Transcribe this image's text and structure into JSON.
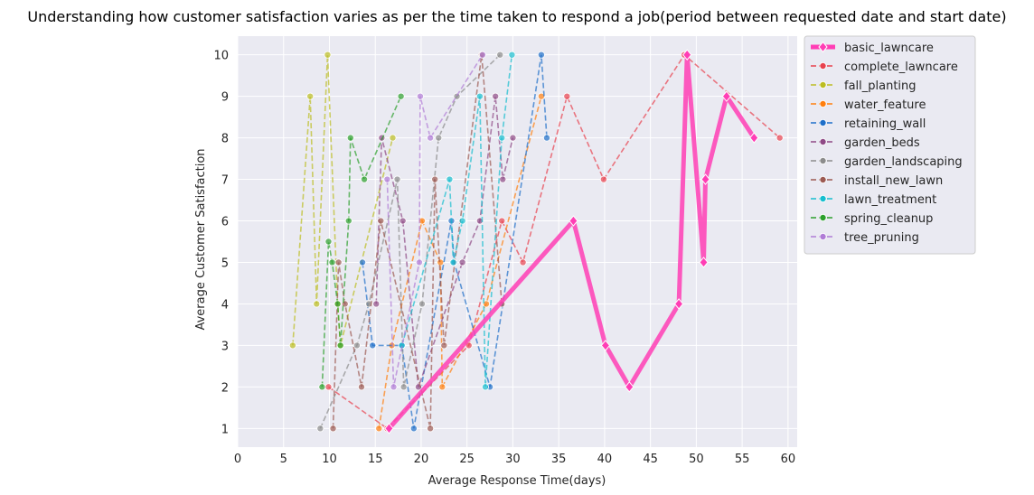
{
  "chart_data": {
    "type": "line",
    "title": "Understanding how customer satisfaction varies as per the time taken to respond a job(period between requested date and start date)",
    "xlabel": "Average Response Time(days)",
    "ylabel": "Average Customer Satisfaction",
    "xlim": [
      0,
      61
    ],
    "ylim": [
      0.55,
      10.45
    ],
    "xticks": [
      0,
      5,
      10,
      15,
      20,
      25,
      30,
      35,
      40,
      45,
      50,
      55,
      60
    ],
    "yticks": [
      1,
      2,
      3,
      4,
      5,
      6,
      7,
      8,
      9,
      10
    ],
    "grid": true,
    "legend_position": "outside-top-right",
    "series": [
      {
        "name": "basic_lawncare",
        "color": "#ff3eb5",
        "style": "solid",
        "marker": "diamond",
        "x": [
          16.5,
          36.6,
          40.1,
          42.7,
          48.1,
          49.0,
          50.8,
          51.0,
          53.3,
          56.3
        ],
        "y": [
          1,
          6,
          3,
          2,
          4,
          10,
          5,
          7,
          9,
          8
        ]
      },
      {
        "name": "complete_lawncare",
        "color": "#e8424e",
        "style": "dashed",
        "marker": "circle",
        "x": [
          9.9,
          16.3,
          25.2,
          28.8,
          31.1,
          35.9,
          39.9,
          48.7,
          59.1
        ],
        "y": [
          2,
          1,
          3,
          6,
          5,
          9,
          7,
          10,
          8
        ]
      },
      {
        "name": "fall_planting",
        "color": "#bcbd22",
        "style": "dashed",
        "marker": "circle",
        "x": [
          6.0,
          7.9,
          8.6,
          9.8,
          10.9,
          11.2,
          16.9
        ],
        "y": [
          3,
          9,
          4,
          10,
          4,
          3,
          8
        ]
      },
      {
        "name": "water_feature",
        "color": "#ff7f0e",
        "style": "dashed",
        "marker": "circle",
        "x": [
          15.4,
          16.8,
          20.1,
          22.1,
          22.3,
          27.1,
          33.1
        ],
        "y": [
          1,
          3,
          6,
          5,
          2,
          4,
          9
        ]
      },
      {
        "name": "retaining_wall",
        "color": "#1f6fc9",
        "style": "dashed",
        "marker": "circle",
        "x": [
          13.6,
          14.7,
          17.9,
          19.2,
          23.3,
          23.6,
          27.5,
          33.1,
          33.7
        ],
        "y": [
          5,
          3,
          3,
          1,
          6,
          5,
          2,
          10,
          8
        ]
      },
      {
        "name": "garden_beds",
        "color": "#8f4a86",
        "style": "dashed",
        "marker": "circle",
        "x": [
          15.1,
          15.7,
          18.0,
          19.7,
          24.5,
          26.4,
          28.1,
          28.9,
          30.0
        ],
        "y": [
          4,
          8,
          6,
          2,
          5,
          6,
          9,
          7,
          8
        ]
      },
      {
        "name": "garden_landscaping",
        "color": "#8c8c8c",
        "style": "dashed",
        "marker": "circle",
        "x": [
          9.0,
          13.0,
          14.3,
          17.4,
          18.1,
          20.1,
          21.9,
          23.9,
          28.6
        ],
        "y": [
          1,
          3,
          4,
          7,
          2,
          4,
          8,
          9,
          10
        ]
      },
      {
        "name": "install_new_lawn",
        "color": "#9c5a52",
        "style": "dashed",
        "marker": "circle",
        "x": [
          10.4,
          11.0,
          11.7,
          13.5,
          15.6,
          21.0,
          21.5,
          22.5,
          26.6,
          28.8
        ],
        "y": [
          1,
          5,
          4,
          2,
          6,
          1,
          7,
          3,
          10,
          4
        ]
      },
      {
        "name": "lawn_treatment",
        "color": "#17becf",
        "style": "dashed",
        "marker": "circle",
        "x": [
          17.9,
          23.1,
          23.5,
          24.5,
          26.4,
          27.0,
          28.8,
          29.9
        ],
        "y": [
          3,
          7,
          5,
          6,
          9,
          2,
          8,
          10
        ]
      },
      {
        "name": "spring_cleanup",
        "color": "#2ca02c",
        "style": "dashed",
        "marker": "circle",
        "x": [
          9.2,
          9.9,
          10.3,
          10.9,
          11.2,
          12.1,
          12.3,
          13.8,
          17.8
        ],
        "y": [
          2,
          5.5,
          5,
          4,
          3,
          6,
          8,
          7,
          9
        ]
      },
      {
        "name": "tree_pruning",
        "color": "#b07cd6",
        "style": "dashed",
        "marker": "circle",
        "x": [
          16.3,
          17.0,
          19.8,
          19.9,
          21.0,
          26.7
        ],
        "y": [
          7,
          2,
          5,
          9,
          8,
          10
        ]
      }
    ]
  }
}
